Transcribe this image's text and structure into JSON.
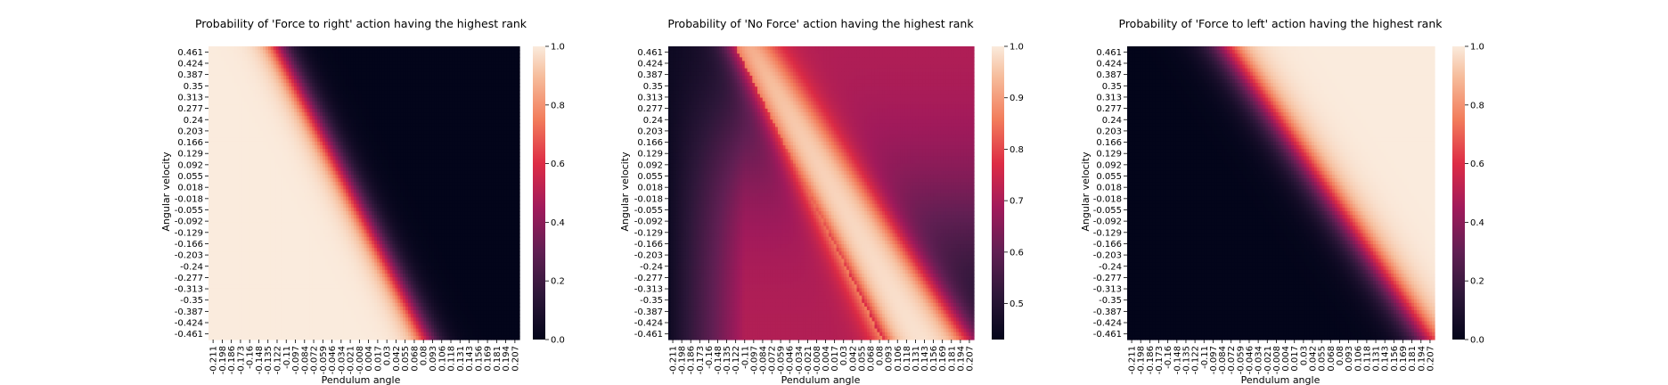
{
  "chart_data": [
    {
      "type": "heatmap",
      "title": "Probability of 'Force to right' action having the highest rank",
      "xlabel": "Pendulum angle",
      "ylabel": "Angular velocity",
      "x_tick_labels": [
        "-0.211",
        "-0.198",
        "-0.186",
        "-0.173",
        "-0.16",
        "-0.148",
        "-0.135",
        "-0.122",
        "-0.11",
        "-0.097",
        "-0.084",
        "-0.072",
        "-0.059",
        "-0.046",
        "-0.034",
        "-0.021",
        "-0.008",
        "0.004",
        "0.017",
        "0.03",
        "0.042",
        "0.055",
        "0.068",
        "0.08",
        "0.093",
        "0.106",
        "0.118",
        "0.131",
        "0.143",
        "0.156",
        "0.169",
        "0.181",
        "0.194",
        "0.207"
      ],
      "y_tick_labels": [
        "0.461",
        "0.424",
        "0.387",
        "0.35",
        "0.313",
        "0.277",
        "0.24",
        "0.203",
        "0.166",
        "0.129",
        "0.092",
        "0.055",
        "0.018",
        "-0.018",
        "-0.055",
        "-0.092",
        "-0.129",
        "-0.166",
        "-0.203",
        "-0.24",
        "-0.277",
        "-0.313",
        "-0.35",
        "-0.387",
        "-0.424",
        "-0.461"
      ],
      "colorbar": {
        "min": 0.0,
        "max": 1.0,
        "ticks": [
          "0.0",
          "0.2",
          "0.4",
          "0.6",
          "0.8",
          "1.0"
        ]
      },
      "colormap": "rocket",
      "pattern": "Values near 1.0 to the left of a diagonal boundary running from angle ≈ -0.12 at velocity 0.461 to angle ≈ 0.04 at velocity -0.461; near 0.0 to the right"
    },
    {
      "type": "heatmap",
      "title": "Probability of 'No Force' action having the highest rank",
      "xlabel": "Pendulum angle",
      "ylabel": "Angular velocity",
      "x_tick_labels": [
        "-0.211",
        "-0.198",
        "-0.186",
        "-0.173",
        "-0.16",
        "-0.148",
        "-0.135",
        "-0.122",
        "-0.11",
        "-0.097",
        "-0.084",
        "-0.072",
        "-0.059",
        "-0.046",
        "-0.034",
        "-0.021",
        "-0.008",
        "0.004",
        "0.017",
        "0.03",
        "0.042",
        "0.055",
        "0.068",
        "0.08",
        "0.093",
        "0.106",
        "0.118",
        "0.131",
        "0.143",
        "0.156",
        "0.169",
        "0.181",
        "0.194",
        "0.207"
      ],
      "y_tick_labels": [
        "0.461",
        "0.424",
        "0.387",
        "0.35",
        "0.313",
        "0.277",
        "0.24",
        "0.203",
        "0.166",
        "0.129",
        "0.092",
        "0.055",
        "0.018",
        "-0.018",
        "-0.055",
        "-0.092",
        "-0.129",
        "-0.166",
        "-0.203",
        "-0.24",
        "-0.277",
        "-0.313",
        "-0.35",
        "-0.387",
        "-0.424",
        "-0.461"
      ],
      "colorbar": {
        "min": 0.43,
        "max": 1.0,
        "ticks": [
          "0.5",
          "0.6",
          "0.7",
          "0.8",
          "0.9",
          "1.0"
        ]
      },
      "colormap": "rocket",
      "pattern": "Diagonal band of values ≈1.0 between the two action boundaries, lower values (0.45–0.7) at the top-left and bottom-left corners and on the right side"
    },
    {
      "type": "heatmap",
      "title": "Probability of 'Force to left' action having the highest rank",
      "xlabel": "Pendulum angle",
      "ylabel": "Angular velocity",
      "x_tick_labels": [
        "-0.211",
        "-0.198",
        "-0.186",
        "-0.173",
        "-0.16",
        "-0.148",
        "-0.135",
        "-0.122",
        "-0.11",
        "-0.097",
        "-0.084",
        "-0.072",
        "-0.059",
        "-0.046",
        "-0.034",
        "-0.021",
        "-0.008",
        "0.004",
        "0.017",
        "0.03",
        "0.042",
        "0.055",
        "0.068",
        "0.08",
        "0.093",
        "0.106",
        "0.118",
        "0.131",
        "0.143",
        "0.156",
        "0.169",
        "0.181",
        "0.194",
        "0.207"
      ],
      "y_tick_labels": [
        "0.461",
        "0.424",
        "0.387",
        "0.35",
        "0.313",
        "0.277",
        "0.24",
        "0.203",
        "0.166",
        "0.129",
        "0.092",
        "0.055",
        "0.018",
        "-0.018",
        "-0.055",
        "-0.092",
        "-0.129",
        "-0.166",
        "-0.203",
        "-0.24",
        "-0.277",
        "-0.313",
        "-0.35",
        "-0.387",
        "-0.424",
        "-0.461"
      ],
      "colorbar": {
        "min": 0.0,
        "max": 1.0,
        "ticks": [
          "0.0",
          "0.2",
          "0.4",
          "0.6",
          "0.8",
          "1.0"
        ]
      },
      "colormap": "rocket",
      "pattern": "Values near 0.0 to the left of a diagonal boundary running from angle ≈ -0.09 at velocity 0.461 to angle ≈ 0.21 at velocity -0.461; near 1.0 to the right"
    }
  ]
}
